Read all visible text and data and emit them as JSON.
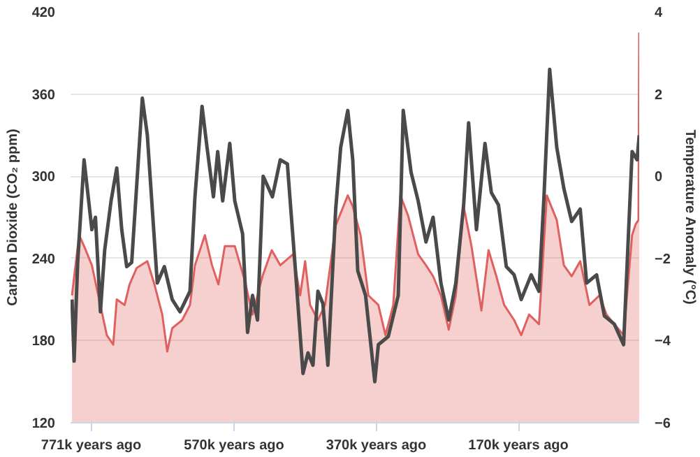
{
  "chart_data": {
    "type": "area",
    "ylabel": "Carbon Dioxide (CO₂ ppm)",
    "y2label": "Temperature Anomaly (°C)",
    "xlim": [
      800,
      0
    ],
    "xticks": [
      {
        "value": 771,
        "label": "771k years ago"
      },
      {
        "value": 570,
        "label": "570k years ago"
      },
      {
        "value": 370,
        "label": "370k years ago"
      },
      {
        "value": 170,
        "label": "170k years ago"
      }
    ],
    "ylim": [
      120,
      420
    ],
    "yticks": [
      120,
      180,
      240,
      300,
      360,
      420
    ],
    "y2lim": [
      -6,
      4
    ],
    "y2ticks": [
      -6,
      -4,
      -2,
      0,
      2,
      4
    ],
    "grid": "y",
    "series": [
      {
        "color": "#e06060",
        "x": [
          798,
          788,
          781,
          770,
          761,
          749,
          740,
          735,
          724,
          717,
          707,
          692,
          682,
          671,
          664,
          657,
          643,
          632,
          625,
          611,
          601,
          592,
          583,
          569,
          555,
          544,
          530,
          517,
          505,
          487,
          477,
          470,
          463,
          452,
          442,
          427,
          410,
          403,
          392,
          381,
          367,
          357,
          346,
          336,
          325,
          311,
          300,
          290,
          279,
          268,
          258,
          247,
          236,
          222,
          212,
          201,
          190,
          176,
          166,
          155,
          141,
          130,
          116,
          106,
          95,
          83,
          70,
          56,
          46,
          35,
          22,
          10,
          5,
          1,
          0
        ],
        "values": [
          213,
          257,
          249,
          235,
          213,
          184,
          177,
          210,
          206,
          221,
          233,
          238,
          221,
          199,
          172,
          189,
          195,
          206,
          235,
          257,
          235,
          221,
          249,
          249,
          224,
          199,
          227,
          246,
          235,
          243,
          213,
          238,
          206,
          195,
          206,
          264,
          286,
          278,
          257,
          213,
          206,
          184,
          206,
          286,
          271,
          243,
          235,
          227,
          213,
          188,
          213,
          278,
          249,
          202,
          246,
          227,
          206,
          195,
          184,
          199,
          192,
          286,
          268,
          235,
          227,
          238,
          206,
          213,
          199,
          192,
          184,
          257,
          265,
          268,
          405
        ]
      },
      {
        "type": "line",
        "axis": "y2",
        "color": "#4a4a4a",
        "x": [
          798,
          795,
          790,
          781,
          770,
          765,
          758,
          752,
          743,
          735,
          728,
          721,
          714,
          699,
          692,
          678,
          668,
          657,
          646,
          632,
          625,
          615,
          608,
          599,
          593,
          586,
          576,
          569,
          558,
          551,
          544,
          537,
          529,
          516,
          505,
          495,
          484,
          473,
          466,
          459,
          452,
          445,
          438,
          427,
          420,
          410,
          403,
          396,
          385,
          372,
          367,
          353,
          339,
          332,
          321,
          311,
          300,
          290,
          279,
          268,
          258,
          247,
          240,
          229,
          217,
          208,
          198,
          187,
          176,
          166,
          152,
          141,
          134,
          126,
          116,
          106,
          95,
          83,
          74,
          60,
          49,
          35,
          22,
          10,
          3,
          0
        ],
        "values": [
          -3.0,
          -4.5,
          -2.1,
          0.4,
          -1.3,
          -1.0,
          -3.3,
          -1.8,
          -0.6,
          0.2,
          -1.3,
          -2.2,
          -2.1,
          1.9,
          1.0,
          -2.6,
          -2.2,
          -3.0,
          -3.3,
          -2.8,
          -0.5,
          1.7,
          0.7,
          -0.5,
          0.6,
          -0.6,
          0.8,
          -0.6,
          -1.4,
          -3.8,
          -2.9,
          -3.5,
          0.0,
          -0.5,
          0.4,
          0.3,
          -2.2,
          -4.8,
          -4.3,
          -4.6,
          -2.8,
          -3.1,
          -4.6,
          -0.8,
          0.7,
          1.6,
          0.4,
          -2.3,
          -2.9,
          -5.0,
          -4.1,
          -3.9,
          -2.9,
          1.6,
          0.1,
          -0.6,
          -1.6,
          -1.0,
          -2.6,
          -3.5,
          -2.6,
          -0.7,
          1.3,
          -1.3,
          0.8,
          -0.4,
          -0.7,
          -2.2,
          -2.4,
          -3.0,
          -2.4,
          -2.8,
          -0.5,
          2.6,
          0.7,
          -0.3,
          -1.1,
          -0.8,
          -2.6,
          -2.4,
          -3.4,
          -3.6,
          -4.1,
          0.6,
          0.4,
          1.0
        ]
      }
    ]
  }
}
